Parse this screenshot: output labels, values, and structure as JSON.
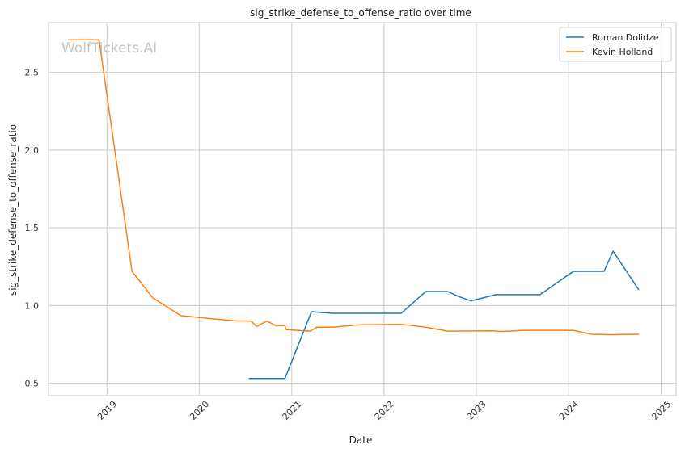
{
  "chart_data": {
    "type": "line",
    "title": "sig_strike_defense_to_offense_ratio over time",
    "xlabel": "Date",
    "ylabel": "sig_strike_defense_to_offense_ratio",
    "watermark": "WolfTickets.AI",
    "x_ticks": [
      "2019",
      "2020",
      "2021",
      "2022",
      "2023",
      "2024",
      "2025"
    ],
    "y_ticks": [
      "0.5",
      "1.0",
      "1.5",
      "2.0",
      "2.5"
    ],
    "xlim": [
      "2018-05-15",
      "2025-03-01"
    ],
    "ylim": [
      0.42,
      2.82
    ],
    "grid": true,
    "legend_position": "top-right",
    "series": [
      {
        "name": "Roman Dolidze",
        "color": "#1f77b4",
        "points": [
          [
            "2020-07-15",
            0.53
          ],
          [
            "2020-12-05",
            0.53
          ],
          [
            "2021-03-20",
            0.96
          ],
          [
            "2021-06-10",
            0.95
          ],
          [
            "2022-03-10",
            0.95
          ],
          [
            "2022-06-15",
            1.09
          ],
          [
            "2022-09-10",
            1.09
          ],
          [
            "2022-10-20",
            1.06
          ],
          [
            "2022-12-10",
            1.03
          ],
          [
            "2023-03-20",
            1.07
          ],
          [
            "2023-09-10",
            1.07
          ],
          [
            "2024-01-20",
            1.22
          ],
          [
            "2024-05-20",
            1.22
          ],
          [
            "2024-06-25",
            1.35
          ],
          [
            "2024-10-05",
            1.1
          ]
        ]
      },
      {
        "name": "Kevin Holland",
        "color": "#ff7f0e",
        "points": [
          [
            "2018-08-01",
            2.71
          ],
          [
            "2018-12-01",
            2.71
          ],
          [
            "2019-04-10",
            1.22
          ],
          [
            "2019-07-01",
            1.05
          ],
          [
            "2019-10-20",
            0.935
          ],
          [
            "2020-01-20",
            0.92
          ],
          [
            "2020-06-01",
            0.9
          ],
          [
            "2020-07-25",
            0.9
          ],
          [
            "2020-08-15",
            0.865
          ],
          [
            "2020-09-25",
            0.9
          ],
          [
            "2020-10-30",
            0.87
          ],
          [
            "2020-12-05",
            0.87
          ],
          [
            "2020-12-10",
            0.845
          ],
          [
            "2021-03-15",
            0.835
          ],
          [
            "2021-04-10",
            0.86
          ],
          [
            "2021-06-15",
            0.86
          ],
          [
            "2021-09-20",
            0.875
          ],
          [
            "2022-03-10",
            0.878
          ],
          [
            "2022-06-15",
            0.86
          ],
          [
            "2022-09-10",
            0.835
          ],
          [
            "2023-03-10",
            0.837
          ],
          [
            "2023-04-10",
            0.833
          ],
          [
            "2023-07-15",
            0.84
          ],
          [
            "2024-01-20",
            0.84
          ],
          [
            "2024-04-01",
            0.815
          ],
          [
            "2024-06-15",
            0.812
          ],
          [
            "2024-10-05",
            0.815
          ]
        ]
      }
    ]
  }
}
